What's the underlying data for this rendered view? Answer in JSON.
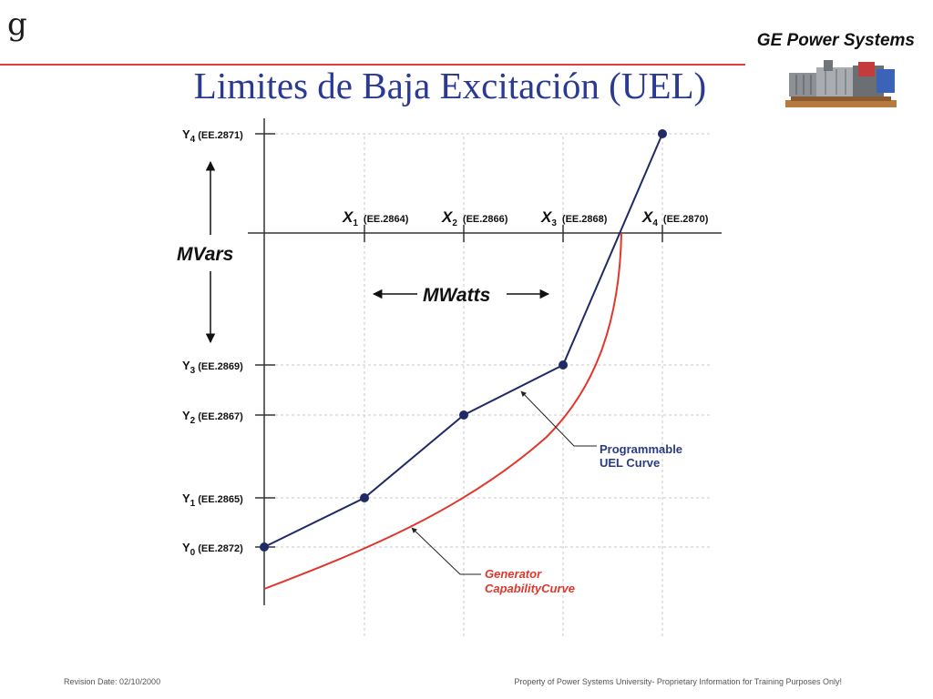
{
  "header": {
    "logo": "g",
    "brand": "GE  Power Systems",
    "title": "Limites de Baja Excitación (UEL)",
    "image_icon": "gas-turbine-illustration"
  },
  "diagram": {
    "y_labels": [
      {
        "sub": "4",
        "ref": "(EE.2871)"
      },
      {
        "sub": "3",
        "ref": "(EE.2869)"
      },
      {
        "sub": "2",
        "ref": "(EE.2867)"
      },
      {
        "sub": "1",
        "ref": "(EE.2865)"
      },
      {
        "sub": "0",
        "ref": "(EE.2872)"
      }
    ],
    "y_letter": "Y",
    "x_letter": "X",
    "x_labels": [
      {
        "sub": "1",
        "ref": "(EE.2864)"
      },
      {
        "sub": "2",
        "ref": "(EE.2866)"
      },
      {
        "sub": "3",
        "ref": "(EE.2868)"
      },
      {
        "sub": "4",
        "ref": "(EE.2870)"
      }
    ],
    "mvars_label": "MVars",
    "mwatts_label": "MWatts",
    "uel_label_line1": "Programmable",
    "uel_label_line2": "UEL  Curve",
    "gen_label_line1": "Generator",
    "gen_label_line2": "CapabilityCurve",
    "colors": {
      "uel_curve": "#1f2a66",
      "generator_curve": "#e0362b",
      "grid": "#c8c8c8",
      "axis": "#333333"
    }
  },
  "footer": {
    "revision": "Revision Date: 02/10/2000",
    "property": "Property of Power Systems University- Proprietary Information for Training Purposes Only!"
  }
}
